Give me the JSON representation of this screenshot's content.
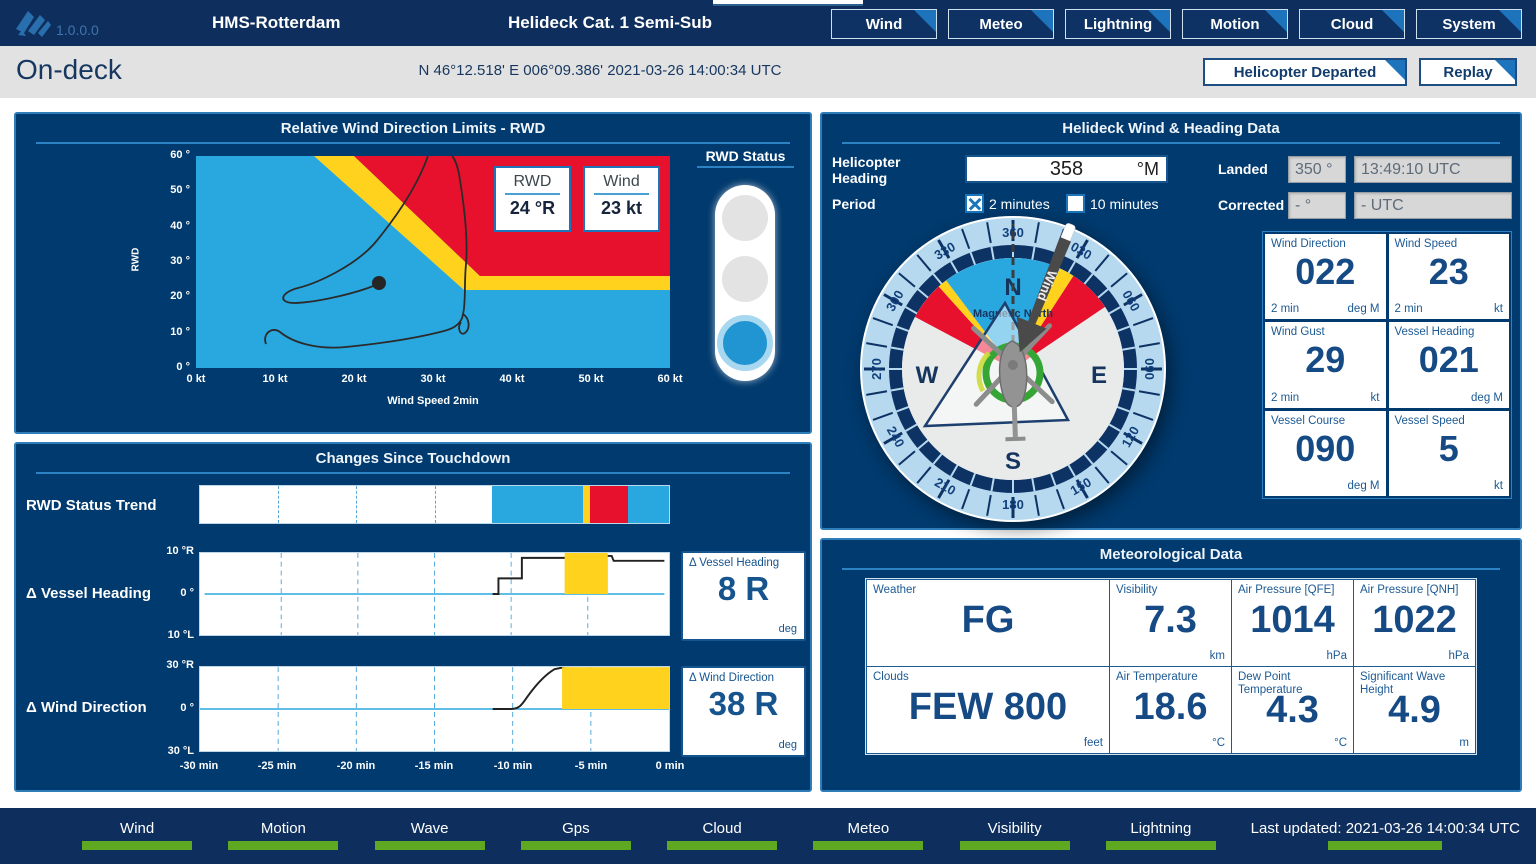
{
  "header": {
    "version": "1.0.0.0",
    "app_title": "HMS-Rotterdam",
    "page_title": "Helideck Cat. 1 Semi-Sub",
    "nav": [
      {
        "label": "Wind"
      },
      {
        "label": "Meteo"
      },
      {
        "label": "Lightning"
      },
      {
        "label": "Motion"
      },
      {
        "label": "Cloud"
      },
      {
        "label": "System"
      }
    ]
  },
  "statusbar": {
    "mode": "On-deck",
    "position_datetime": "N 46°12.518'  E 006°09.386'  2021-03-26 14:00:34 UTC",
    "departed_button": "Helicopter Departed",
    "replay_button": "Replay"
  },
  "rwd_panel": {
    "title": "Relative Wind Direction Limits - RWD",
    "y_axis_label": "RWD",
    "x_axis_label": "Wind Speed 2min",
    "y_ticks": [
      "60 °",
      "50 °",
      "40 °",
      "30 °",
      "20 °",
      "10 °",
      "0 °"
    ],
    "x_ticks": [
      "0 kt",
      "10 kt",
      "20 kt",
      "30 kt",
      "40 kt",
      "50 kt",
      "60 kt"
    ],
    "rwd_readout": {
      "label": "RWD",
      "value": "24 °R"
    },
    "wind_readout": {
      "label": "Wind",
      "value": "23 kt"
    },
    "status": {
      "title": "RWD Status",
      "active_light": "blue"
    },
    "chart_data": {
      "type": "scatter",
      "x_range_kt": [
        0,
        60
      ],
      "y_range_deg": [
        0,
        60
      ],
      "current_point": {
        "wind_speed_kt": 23,
        "rwd_deg": 24
      },
      "zones": {
        "blue": "safe area lower-left",
        "yellow": "caution band from 15-20 kt at 60° sloping to 22-26° beyond 34 kt",
        "red": "restricted area upper-right"
      }
    }
  },
  "changes_panel": {
    "title": "Changes Since Touchdown",
    "trend_label": "RWD Status Trend",
    "trend_segments": [
      {
        "from_pct": 0,
        "to_pct": 62.2,
        "color": "#ffffff"
      },
      {
        "from_pct": 62.2,
        "to_pct": 81.7,
        "color": "#29a8e0"
      },
      {
        "from_pct": 81.7,
        "to_pct": 83.2,
        "color": "#ffd21e"
      },
      {
        "from_pct": 83.2,
        "to_pct": 91.3,
        "color": "#e8112d"
      },
      {
        "from_pct": 91.3,
        "to_pct": 100,
        "color": "#29a8e0"
      }
    ],
    "x_ticks": [
      "-30 min",
      "-25 min",
      "-20 min",
      "-15 min",
      "-10 min",
      "-5 min",
      "0 min"
    ],
    "vessel_heading": {
      "row_label": "Δ Vessel Heading",
      "y_ticks": [
        "10 °R",
        "0 °",
        "10 °L"
      ],
      "readout_label": "Δ Vessel Heading",
      "value": "8 R",
      "unit": "deg",
      "yellow_region_pct": [
        78.3,
        87.7
      ]
    },
    "wind_direction": {
      "row_label": "Δ Wind Direction",
      "y_ticks": [
        "30 °R",
        "0 °",
        "30 °L"
      ],
      "readout_label": "Δ Wind Direction",
      "value": "38 R",
      "unit": "deg",
      "yellow_region_pct": [
        77.2,
        100
      ]
    }
  },
  "heading_panel": {
    "title": "Helideck Wind & Heading Data",
    "helicopter_heading_label": "Helicopter Heading",
    "helicopter_heading_value": "358",
    "helicopter_heading_unit": "°M",
    "period_label": "Period",
    "period_options": [
      {
        "label": "2 minutes",
        "checked": true
      },
      {
        "label": "10 minutes",
        "checked": false
      }
    ],
    "landed_label": "Landed",
    "landed_heading": "350 °",
    "landed_time": "13:49:10 UTC",
    "corrected_label": "Corrected",
    "corrected_heading": "- °",
    "corrected_time": "- UTC",
    "compass": {
      "labels": [
        "360",
        "030",
        "060",
        "090",
        "120",
        "150",
        "180",
        "210",
        "240",
        "270",
        "300",
        "330"
      ],
      "cardinal": {
        "n": "N",
        "e": "E",
        "s": "S",
        "w": "W"
      },
      "annotation": "Magnetic North",
      "wind_arrow_label": "Wind",
      "wind_arrow_deg": 22,
      "sectors": [
        {
          "from": 298,
          "to": 318,
          "color": "#e8112d"
        },
        {
          "from": 318,
          "to": 323,
          "color": "#ffd21e"
        },
        {
          "from": 323,
          "to": 385,
          "color": "#29a8e0"
        },
        {
          "from": 25,
          "to": 33,
          "color": "#ffd21e"
        },
        {
          "from": 33,
          "to": 56,
          "color": "#e8112d"
        }
      ]
    },
    "readouts": [
      {
        "label": "Wind Direction",
        "value": "022",
        "bottom_left": "2 min",
        "unit": "deg M"
      },
      {
        "label": "Wind Speed",
        "value": "23",
        "bottom_left": "2 min",
        "unit": "kt"
      },
      {
        "label": "Wind Gust",
        "value": "29",
        "bottom_left": "2 min",
        "unit": "kt"
      },
      {
        "label": "Vessel Heading",
        "value": "021",
        "bottom_left": "",
        "unit": "deg M"
      },
      {
        "label": "Vessel Course",
        "value": "090",
        "bottom_left": "",
        "unit": "deg M"
      },
      {
        "label": "Vessel Speed",
        "value": "5",
        "bottom_left": "",
        "unit": "kt"
      }
    ]
  },
  "met_panel": {
    "title": "Meteorological Data",
    "cells": [
      {
        "label": "Weather",
        "value": "FG",
        "unit": ""
      },
      {
        "label": "Visibility",
        "value": "7.3",
        "unit": "km"
      },
      {
        "label": "Air Pressure [QFE]",
        "value": "1014",
        "unit": "hPa"
      },
      {
        "label": "Air Pressure [QNH]",
        "value": "1022",
        "unit": "hPa"
      },
      {
        "label": "Clouds",
        "value": "FEW 800",
        "unit": "feet"
      },
      {
        "label": "Air Temperature",
        "value": "18.6",
        "unit": "°C"
      },
      {
        "label": "Dew Point Temperature",
        "value": "4.3",
        "unit": "°C"
      },
      {
        "label": "Significant Wave Height",
        "value": "4.9",
        "unit": "m"
      }
    ]
  },
  "footer": {
    "sensors": [
      {
        "label": "Wind"
      },
      {
        "label": "Motion"
      },
      {
        "label": "Wave"
      },
      {
        "label": "Gps"
      },
      {
        "label": "Cloud"
      },
      {
        "label": "Meteo"
      },
      {
        "label": "Visibility"
      },
      {
        "label": "Lightning"
      }
    ],
    "last_updated": "Last updated: 2021-03-26 14:00:34 UTC",
    "status_color": "#5ea822"
  }
}
